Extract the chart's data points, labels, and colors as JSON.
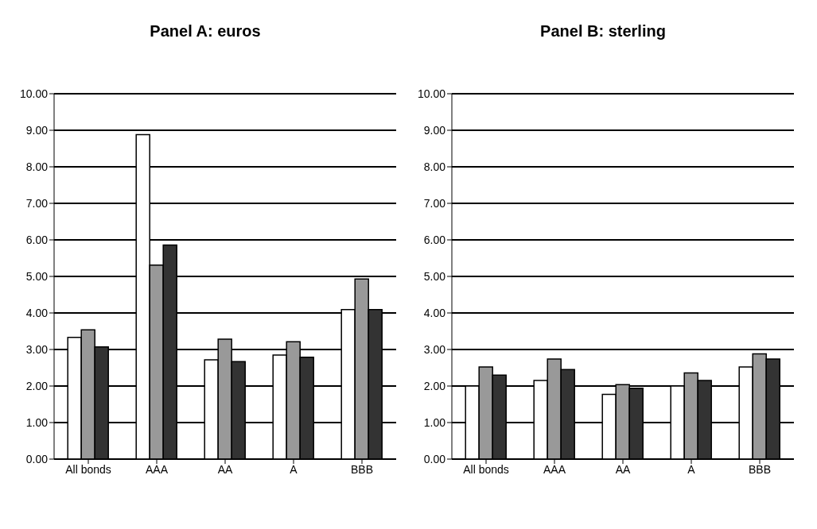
{
  "chart_data": [
    {
      "type": "bar",
      "title": "Panel A: euros",
      "categories": [
        "All bonds",
        "AAA",
        "AA",
        "A",
        "BBB"
      ],
      "series": [
        {
          "color": "#ffffff",
          "values": [
            3.33,
            8.88,
            2.72,
            2.85,
            4.09
          ]
        },
        {
          "color": "#999999",
          "values": [
            3.54,
            5.31,
            3.28,
            3.21,
            4.93
          ]
        },
        {
          "color": "#333333",
          "values": [
            3.07,
            5.86,
            2.67,
            2.79,
            4.09
          ]
        }
      ],
      "ylim": [
        0,
        10
      ],
      "yticks": [
        {
          "value": 0,
          "label": "0.00"
        },
        {
          "value": 1,
          "label": "1.00"
        },
        {
          "value": 2,
          "label": "2.00"
        },
        {
          "value": 3,
          "label": "3.00"
        },
        {
          "value": 4,
          "label": "4.00"
        },
        {
          "value": 5,
          "label": "5.00"
        },
        {
          "value": 6,
          "label": "6.00"
        },
        {
          "value": 7,
          "label": "7.00"
        },
        {
          "value": 8,
          "label": "8.00"
        },
        {
          "value": 9,
          "label": "9.00"
        },
        {
          "value": 10,
          "label": "10.00"
        }
      ],
      "grid": "y",
      "legend": false
    },
    {
      "type": "bar",
      "title": "Panel B: sterling",
      "categories": [
        "All bonds",
        "AAA",
        "AA",
        "A",
        "BBB"
      ],
      "series": [
        {
          "color": "#ffffff",
          "values": [
            2.0,
            2.15,
            1.77,
            2.0,
            2.52
          ]
        },
        {
          "color": "#999999",
          "values": [
            2.52,
            2.74,
            2.04,
            2.36,
            2.88
          ]
        },
        {
          "color": "#333333",
          "values": [
            2.3,
            2.45,
            1.94,
            2.15,
            2.74
          ]
        }
      ],
      "ylim": [
        0,
        10
      ],
      "yticks": [
        {
          "value": 0,
          "label": "0.00"
        },
        {
          "value": 1,
          "label": "1.00"
        },
        {
          "value": 2,
          "label": "2.00"
        },
        {
          "value": 3,
          "label": "3.00"
        },
        {
          "value": 4,
          "label": "4.00"
        },
        {
          "value": 5,
          "label": "5.00"
        },
        {
          "value": 6,
          "label": "6.00"
        },
        {
          "value": 7,
          "label": "7.00"
        },
        {
          "value": 8,
          "label": "8.00"
        },
        {
          "value": 9,
          "label": "9.00"
        },
        {
          "value": 10,
          "label": "10.00"
        }
      ],
      "grid": "y",
      "legend": false
    }
  ]
}
